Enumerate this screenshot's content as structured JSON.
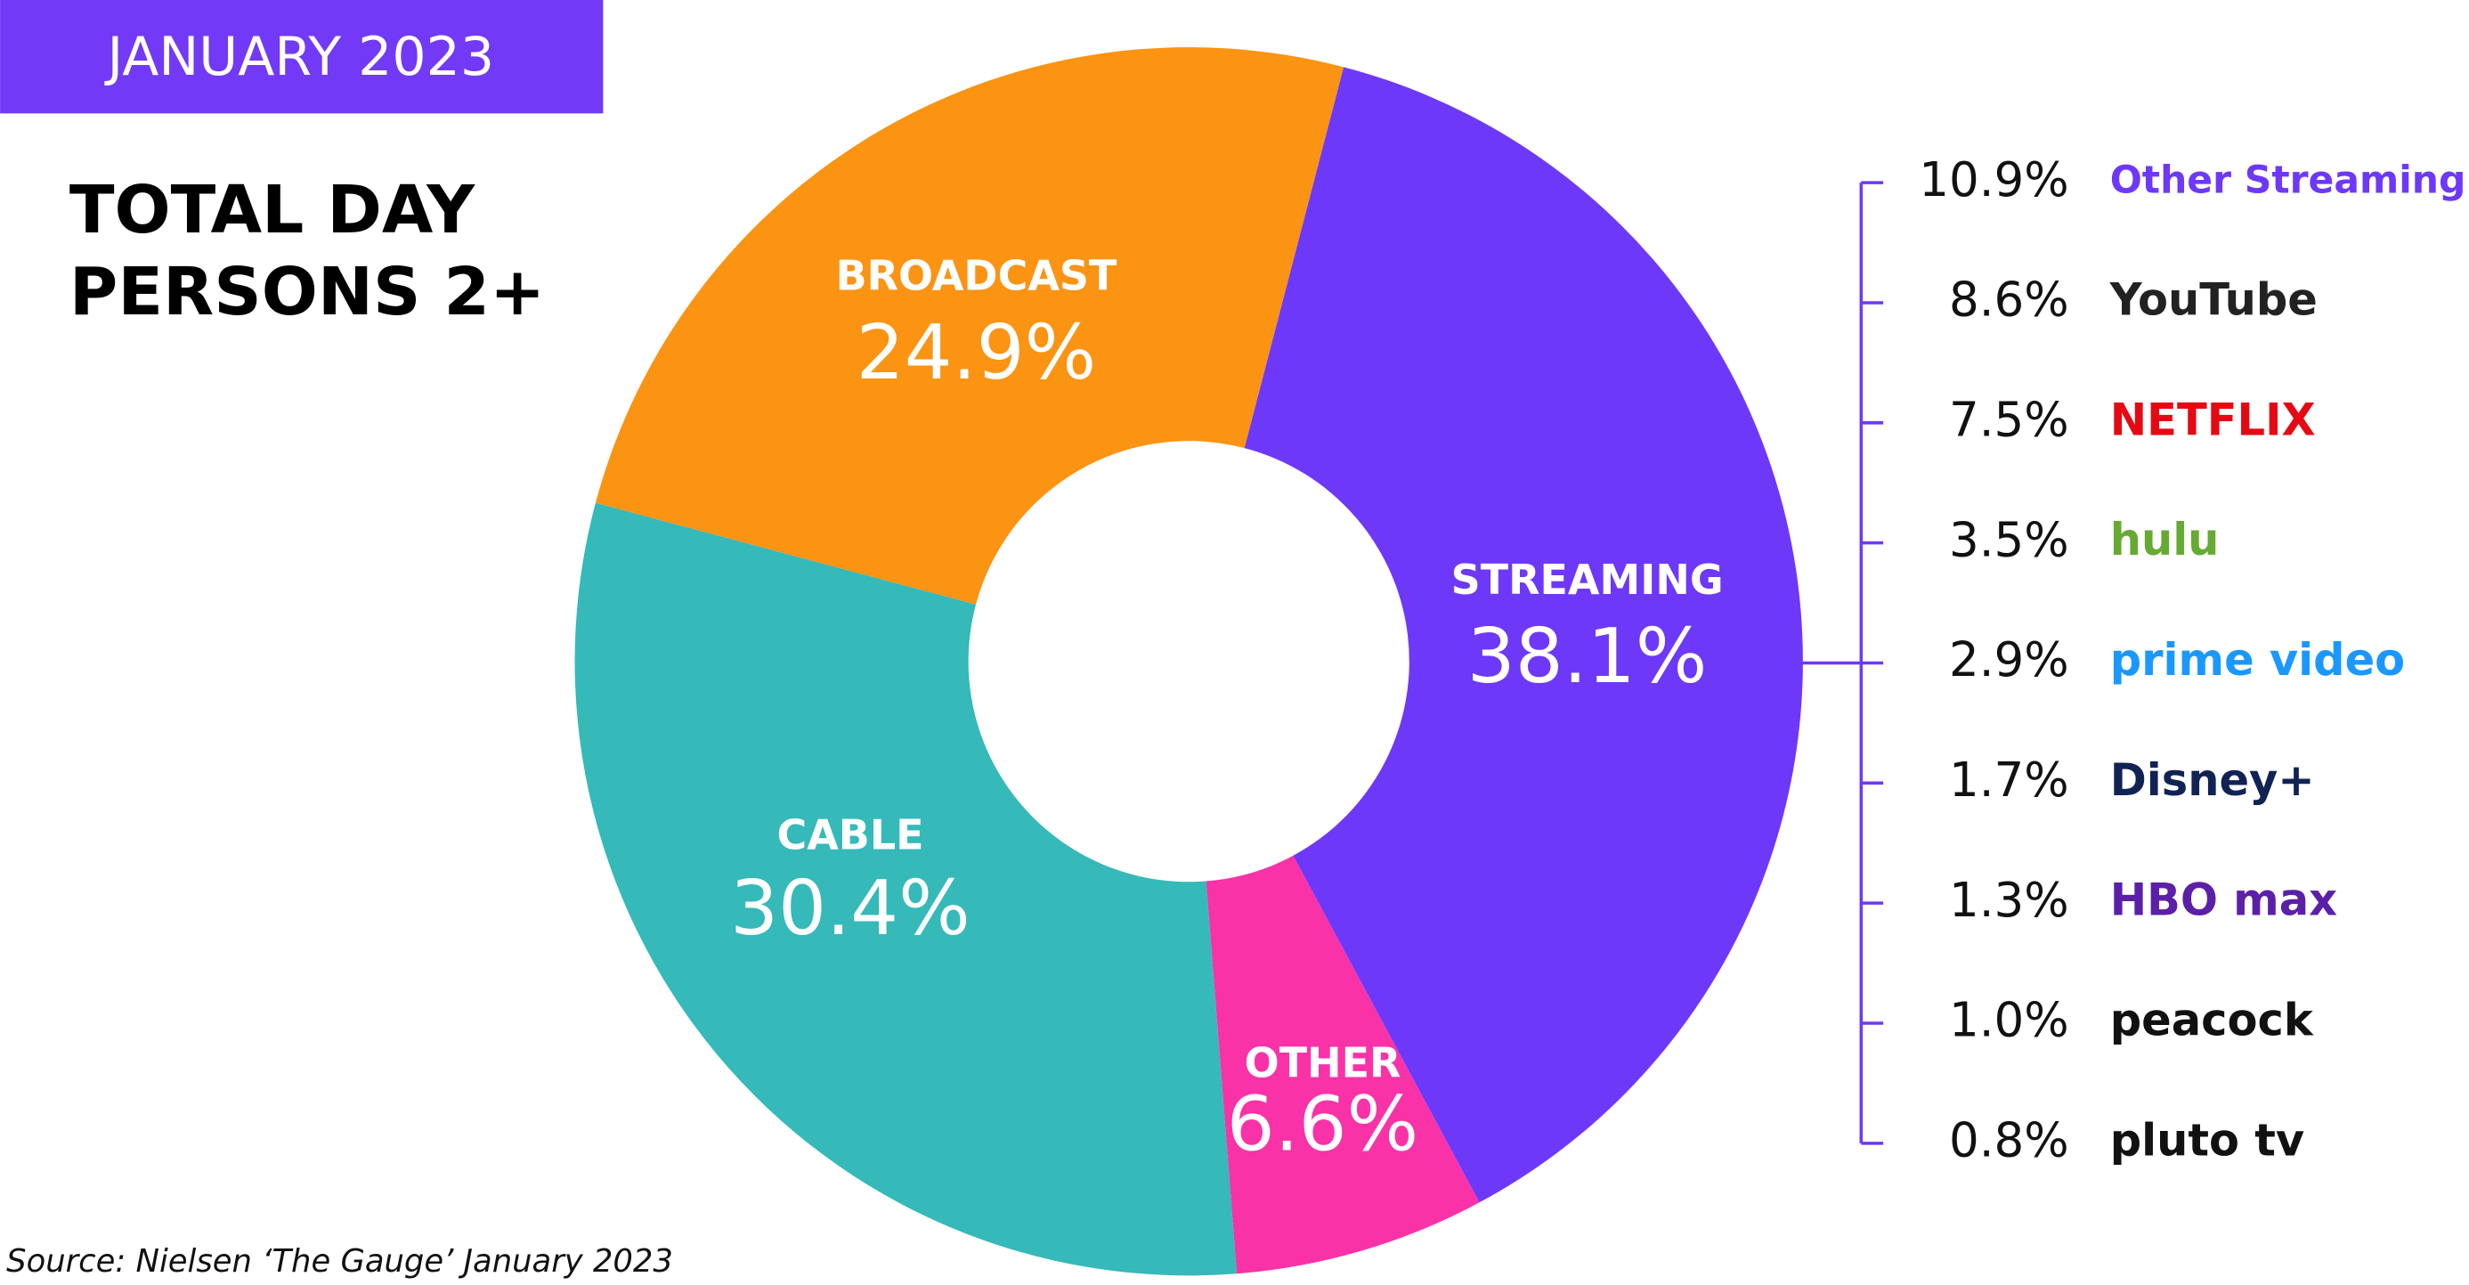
{
  "header": "JANUARY 2023",
  "title": [
    "TOTAL DAY",
    "PERSONS 2+"
  ],
  "source": "Source: Nielsen ‘The Gauge’ January 2023",
  "chart_data": {
    "type": "donut",
    "categories": [
      "STREAMING",
      "OTHER",
      "CABLE",
      "BROADCAST"
    ],
    "values": [
      38.1,
      6.6,
      30.4,
      24.9
    ],
    "value_labels": [
      "38.1%",
      "6.6%",
      "30.4%",
      "24.9%"
    ],
    "colors": [
      "#6e38f9",
      "#f932a8",
      "#35b9b9",
      "#fb9313"
    ],
    "breakdown": {
      "categories": [
        "Other Streaming",
        "YouTube",
        "NETFLIX",
        "hulu",
        "prime video",
        "Disney+",
        "HBO max",
        "peacock",
        "pluto tv"
      ],
      "values": [
        10.9,
        8.6,
        7.5,
        3.5,
        2.9,
        1.7,
        1.3,
        1.0,
        0.8
      ],
      "value_labels": [
        "10.9%",
        "8.6%",
        "7.5%",
        "3.5%",
        "2.9%",
        "1.7%",
        "1.3%",
        "1.0%",
        "0.8%"
      ],
      "colors": [
        "#6e38f9",
        "#222222",
        "#e50914",
        "#66aa33",
        "#1a98ff",
        "#112255",
        "#5b1fa8",
        "#111111",
        "#111111"
      ]
    }
  }
}
